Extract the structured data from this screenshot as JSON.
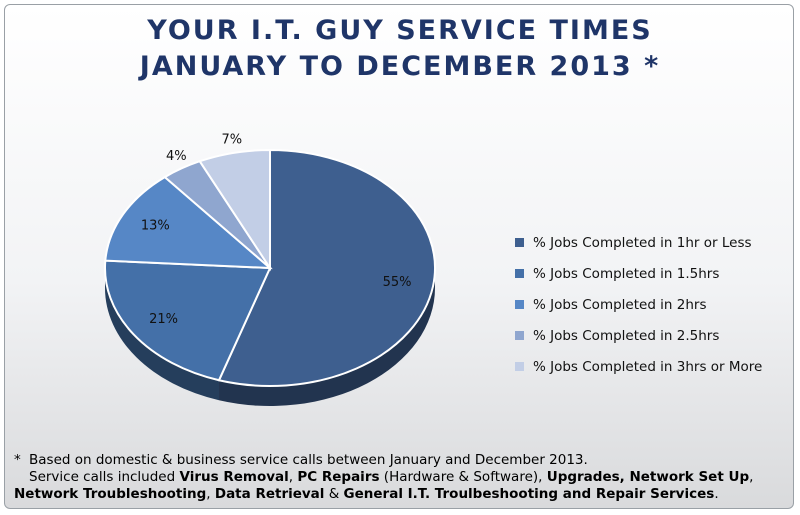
{
  "title": {
    "line1": "YOUR I.T. GUY SERVICE TIMES",
    "line2": "JANUARY TO DECEMBER 2013 *"
  },
  "chart_data": {
    "type": "pie",
    "title": "YOUR I.T. GUY SERVICE TIMES JANUARY TO DECEMBER 2013 *",
    "legend_position": "right",
    "slices": [
      {
        "label": "% Jobs Completed in 1hr or Less",
        "value": 55,
        "data_label": "55%",
        "color": "#3e5f8f"
      },
      {
        "label": "% Jobs Completed in 1.5hrs",
        "value": 21,
        "data_label": "21%",
        "color": "#4470a8"
      },
      {
        "label": "% Jobs Completed in 2hrs",
        "value": 13,
        "data_label": "13%",
        "color": "#5687c6"
      },
      {
        "label": "% Jobs Completed in 2.5hrs",
        "value": 4,
        "data_label": "4%",
        "color": "#8fa6cf"
      },
      {
        "label": "% Jobs Completed in 3hrs or More",
        "value": 7,
        "data_label": "7%",
        "color": "#c2cee6"
      }
    ]
  },
  "footnote": {
    "asterisk": "*",
    "line1": "Based on domestic & business service calls between January and December 2013.",
    "line2": [
      {
        "t": "Service calls included ",
        "b": false
      },
      {
        "t": "Virus Removal",
        "b": true
      },
      {
        "t": ", ",
        "b": false
      },
      {
        "t": "PC Repairs",
        "b": true
      },
      {
        "t": " (Hardware & Software), ",
        "b": false
      },
      {
        "t": "Upgrades, Network Set Up",
        "b": true
      },
      {
        "t": ",",
        "b": false
      }
    ],
    "line3": [
      {
        "t": "Network Troubleshooting",
        "b": true
      },
      {
        "t": ", ",
        "b": false
      },
      {
        "t": "Data Retrieval",
        "b": true
      },
      {
        "t": " & ",
        "b": false
      },
      {
        "t": "General I.T. Troulbeshooting and Repair Services",
        "b": true
      },
      {
        "t": ".",
        "b": false
      }
    ]
  }
}
